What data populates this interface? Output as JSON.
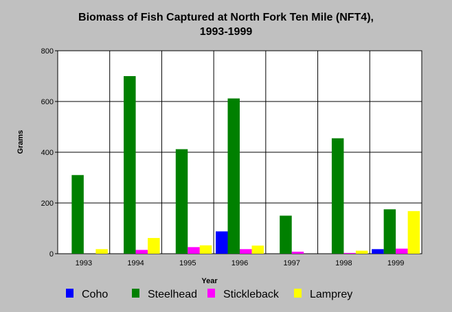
{
  "chart_data": {
    "type": "bar",
    "title_lines": [
      "Biomass of Fish Captured at North Fork Ten Mile (NFT4),",
      "1993-1999"
    ],
    "xlabel": "Year",
    "ylabel": "Grams",
    "ylim": [
      0,
      800
    ],
    "yticks": [
      "0",
      "200",
      "400",
      "600",
      "800"
    ],
    "categories": [
      "1993",
      "1994",
      "1995",
      "1996",
      "1997",
      "1998",
      "1999"
    ],
    "grid": true,
    "legend_position": "bottom",
    "series": [
      {
        "name": "Coho",
        "color": "#0000ff",
        "values": [
          0,
          0,
          0,
          88,
          0,
          0,
          18
        ]
      },
      {
        "name": "Steelhead",
        "color": "#008000",
        "values": [
          310,
          700,
          412,
          612,
          150,
          455,
          175
        ]
      },
      {
        "name": "Stickleback",
        "color": "#ff00ff",
        "values": [
          0,
          15,
          26,
          18,
          8,
          3,
          20
        ]
      },
      {
        "name": "Lamprey",
        "color": "#ffff00",
        "values": [
          18,
          62,
          33,
          32,
          0,
          12,
          168
        ]
      }
    ]
  }
}
